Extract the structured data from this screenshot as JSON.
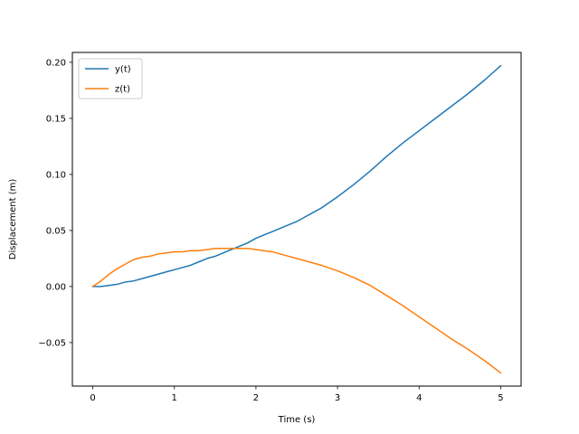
{
  "chart_data": {
    "type": "line",
    "xlabel": "Time (s)",
    "ylabel": "Displacement (m)",
    "xlim": [
      -0.25,
      5.25
    ],
    "ylim": [
      -0.0888,
      0.2088
    ],
    "xticks": [
      0,
      1,
      2,
      3,
      4,
      5
    ],
    "xtick_labels": [
      "0",
      "1",
      "2",
      "3",
      "4",
      "5"
    ],
    "yticks": [
      -0.05,
      0.0,
      0.05,
      0.1,
      0.15,
      0.2
    ],
    "ytick_labels": [
      "−0.05",
      "0.00",
      "0.05",
      "0.10",
      "0.15",
      "0.20"
    ],
    "grid": false,
    "legend_position": "upper-left",
    "series": [
      {
        "name": "y(t)",
        "color": "#1f77b4",
        "x": [
          0,
          0.1,
          0.2,
          0.3,
          0.4,
          0.5,
          0.6,
          0.7,
          0.8,
          0.9,
          1.0,
          1.1,
          1.2,
          1.3,
          1.4,
          1.5,
          1.6,
          1.7,
          1.8,
          1.9,
          2.0,
          2.1,
          2.2,
          2.3,
          2.4,
          2.5,
          2.6,
          2.7,
          2.8,
          2.9,
          3.0,
          3.2,
          3.4,
          3.6,
          3.8,
          4.0,
          4.2,
          4.4,
          4.6,
          4.8,
          5.0
        ],
        "values": [
          0.0,
          0.0,
          0.001,
          0.002,
          0.004,
          0.005,
          0.007,
          0.009,
          0.011,
          0.013,
          0.015,
          0.017,
          0.019,
          0.022,
          0.025,
          0.027,
          0.03,
          0.033,
          0.036,
          0.039,
          0.043,
          0.046,
          0.049,
          0.052,
          0.055,
          0.058,
          0.062,
          0.066,
          0.07,
          0.075,
          0.08,
          0.091,
          0.103,
          0.116,
          0.128,
          0.139,
          0.15,
          0.161,
          0.172,
          0.184,
          0.197
        ]
      },
      {
        "name": "z(t)",
        "color": "#ff7f0e",
        "x": [
          0,
          0.1,
          0.2,
          0.3,
          0.4,
          0.5,
          0.6,
          0.7,
          0.8,
          0.9,
          1.0,
          1.1,
          1.2,
          1.3,
          1.4,
          1.5,
          1.6,
          1.7,
          1.8,
          1.9,
          2.0,
          2.2,
          2.4,
          2.6,
          2.8,
          3.0,
          3.2,
          3.4,
          3.6,
          3.8,
          4.0,
          4.2,
          4.4,
          4.6,
          4.8,
          5.0
        ],
        "values": [
          0.0,
          0.005,
          0.011,
          0.016,
          0.02,
          0.024,
          0.026,
          0.027,
          0.029,
          0.03,
          0.031,
          0.031,
          0.032,
          0.032,
          0.033,
          0.034,
          0.034,
          0.034,
          0.034,
          0.034,
          0.033,
          0.031,
          0.027,
          0.023,
          0.019,
          0.014,
          0.008,
          0.001,
          -0.008,
          -0.017,
          -0.027,
          -0.037,
          -0.047,
          -0.056,
          -0.066,
          -0.077
        ]
      }
    ]
  }
}
